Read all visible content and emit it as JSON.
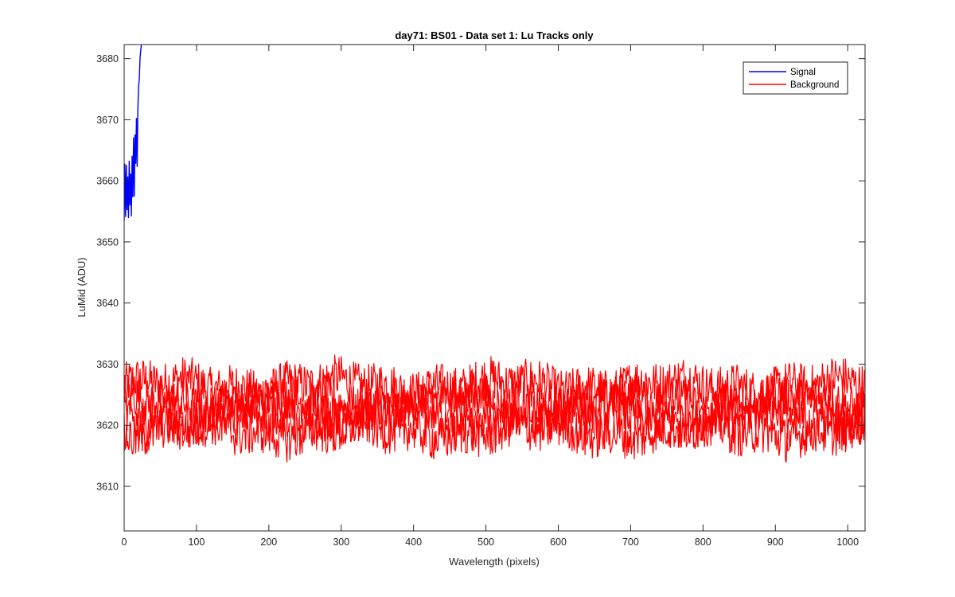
{
  "chart_data": {
    "type": "line",
    "title": "day71: BS01 - Data set 1: Lu Tracks only",
    "xlabel": "Wavelength (pixels)",
    "ylabel": "LuMid (ADU)",
    "xlim": [
      0,
      1024
    ],
    "ylim": [
      3602.7,
      3682.3
    ],
    "xticks": [
      0,
      100,
      200,
      300,
      400,
      500,
      600,
      700,
      800,
      900,
      1000
    ],
    "yticks": [
      3610,
      3620,
      3630,
      3640,
      3650,
      3660,
      3670,
      3680
    ],
    "grid": false,
    "legend": {
      "position": "top-right",
      "entries": [
        "Signal",
        "Background"
      ]
    },
    "series": [
      {
        "name": "Signal",
        "color": "#0000ff",
        "x": [
          0,
          1,
          2,
          3,
          4,
          5,
          6,
          7,
          8,
          9,
          10,
          11,
          12,
          13,
          14,
          15,
          16,
          17,
          18,
          19,
          20,
          21,
          22,
          23,
          24,
          25
        ],
        "y": [
          3653.5,
          3662.8,
          3654.1,
          3662.6,
          3655.2,
          3660.7,
          3653.9,
          3663.3,
          3656.0,
          3661.2,
          3654.2,
          3664.1,
          3657.3,
          3667.1,
          3657.4,
          3667.6,
          3662.8,
          3670.3,
          3662.3,
          3672.1,
          3675.4,
          3676.8,
          3680.2,
          3681.4,
          3682.6,
          3683.5
        ]
      },
      {
        "name": "Background",
        "color": "#ff0000",
        "note_tracks": [
          3626.5,
          3623.8,
          3621.5,
          3619.0
        ],
        "x_range": [
          0,
          1024
        ],
        "y_min": 3612.8,
        "y_max": 3631.8
      }
    ]
  }
}
